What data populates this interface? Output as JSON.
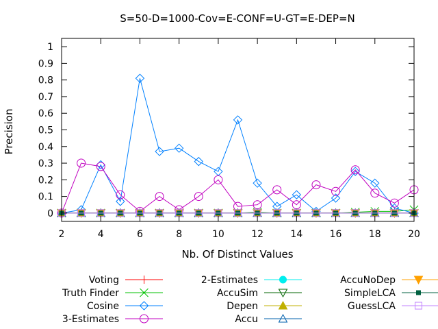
{
  "chart_data": {
    "type": "line",
    "title": "S=50-D=1000-Cov=E-CONF=U-GT=E-DEP=N",
    "xlabel": "Nb. Of Distinct Values",
    "ylabel": "Precision",
    "xlim": [
      2,
      20
    ],
    "ylim": [
      -0.05,
      1.05
    ],
    "x_ticks": [
      2,
      4,
      6,
      8,
      10,
      12,
      14,
      16,
      18,
      20
    ],
    "y_ticks": [
      0,
      0.1,
      0.2,
      0.3,
      0.4,
      0.5,
      0.6,
      0.7,
      0.8,
      0.9,
      1
    ],
    "x_tick_labels": [
      "2",
      "4",
      "6",
      "8",
      "10",
      "12",
      "14",
      "16",
      "18",
      "20"
    ],
    "y_tick_labels": [
      "0",
      "0.1",
      "0.2",
      "0.3",
      "0.4",
      "0.5",
      "0.6",
      "0.7",
      "0.8",
      "0.9",
      "1"
    ],
    "grid": false,
    "legend_position": "bottom",
    "x": [
      2,
      3,
      4,
      5,
      6,
      7,
      8,
      9,
      10,
      11,
      12,
      13,
      14,
      15,
      16,
      17,
      18,
      19,
      20
    ],
    "series": [
      {
        "name": "Voting",
        "color": "#ff0000",
        "marker": "plus",
        "values": [
          0,
          0,
          0,
          0,
          0,
          0,
          0,
          0,
          0,
          0,
          0,
          0,
          0,
          0,
          0,
          0,
          0,
          0,
          0
        ]
      },
      {
        "name": "Truth Finder",
        "color": "#00c000",
        "marker": "cross",
        "values": [
          0,
          0,
          0,
          0,
          0,
          0,
          0,
          0,
          0,
          0,
          0.005,
          0,
          0,
          0,
          0,
          0.005,
          0.01,
          0.01,
          0.02
        ]
      },
      {
        "name": "Cosine",
        "color": "#0080ff",
        "marker": "diamond",
        "values": [
          0,
          0.02,
          0.29,
          0.07,
          0.81,
          0.37,
          0.39,
          0.31,
          0.25,
          0.56,
          0.18,
          0.04,
          0.11,
          0.01,
          0.09,
          0.25,
          0.18,
          0.03,
          0
        ]
      },
      {
        "name": "3-Estimates",
        "color": "#c000c0",
        "marker": "circle",
        "values": [
          0,
          0.3,
          0.28,
          0.11,
          0.01,
          0.1,
          0.02,
          0.1,
          0.2,
          0.04,
          0.05,
          0.14,
          0.05,
          0.17,
          0.13,
          0.26,
          0.12,
          0.06,
          0.14
        ]
      },
      {
        "name": "2-Estimates",
        "color": "#00eeee",
        "marker": "filled-circle",
        "values": [
          0,
          0,
          0,
          0,
          0,
          0,
          0,
          0,
          0,
          0,
          0,
          0,
          0,
          0,
          0,
          0,
          0,
          0,
          0
        ]
      },
      {
        "name": "AccuSim",
        "color": "#006400",
        "marker": "down-triangle",
        "values": [
          0,
          0,
          0,
          0,
          0,
          0,
          0,
          0,
          0,
          0,
          0,
          0,
          0,
          0,
          0,
          0,
          0,
          0,
          0
        ]
      },
      {
        "name": "Depen",
        "color": "#c0b000",
        "marker": "filled-triangle",
        "values": [
          0,
          0,
          0,
          0,
          0,
          0,
          0,
          0,
          0,
          0,
          0,
          0,
          0,
          0,
          0,
          0,
          0,
          0,
          0
        ]
      },
      {
        "name": "Accu",
        "color": "#0060ad",
        "marker": "up-triangle",
        "values": [
          0,
          0,
          0,
          0,
          0,
          0,
          0,
          0,
          0,
          0,
          0,
          0,
          0,
          0,
          0,
          0,
          0,
          0,
          0
        ]
      },
      {
        "name": "AccuNoDep",
        "color": "#ffa000",
        "marker": "filled-down-triangle",
        "values": [
          0,
          0,
          0,
          0,
          0,
          0,
          0,
          0,
          0,
          0,
          0,
          0,
          0,
          0,
          0,
          0,
          0,
          0,
          0
        ]
      },
      {
        "name": "SimpleLCA",
        "color": "#006040",
        "marker": "filled-square",
        "values": [
          0,
          0,
          0,
          0,
          0,
          0,
          0,
          0,
          0,
          0,
          0,
          0,
          0,
          0,
          0,
          0,
          0,
          0,
          0
        ]
      },
      {
        "name": "GuessLCA",
        "color": "#c080ff",
        "marker": "square",
        "values": [
          0,
          0,
          0,
          0,
          0,
          0,
          0,
          0,
          0,
          0,
          0,
          0,
          0,
          0,
          0,
          0,
          0,
          0,
          0
        ]
      }
    ]
  }
}
